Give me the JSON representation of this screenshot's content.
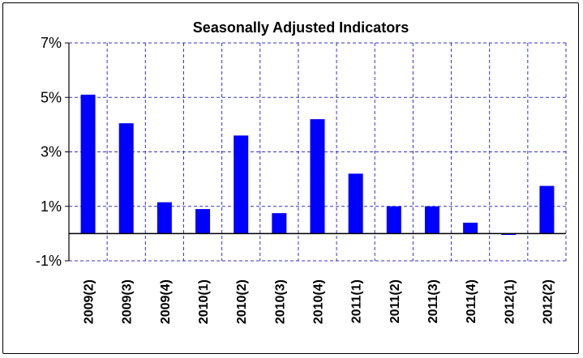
{
  "chart_data": {
    "type": "bar",
    "title": "Seasonally Adjusted Indicators",
    "xlabel": "",
    "ylabel": "",
    "categories": [
      "2009(2)",
      "2009(3)",
      "2009(4)",
      "2010(1)",
      "2010(2)",
      "2010(3)",
      "2010(4)",
      "2011(1)",
      "2011(2)",
      "2011(3)",
      "2011(4)",
      "2012(1)",
      "2012(2)"
    ],
    "values": [
      5.1,
      4.05,
      1.15,
      0.9,
      3.6,
      0.75,
      4.2,
      2.2,
      1.0,
      1.0,
      0.4,
      -0.05,
      1.75
    ],
    "ylim": [
      -1,
      7
    ],
    "yticks": [
      -1,
      1,
      3,
      5,
      7
    ],
    "ytick_labels": [
      "-1%",
      "1%",
      "3%",
      "5%",
      "7%"
    ],
    "grid": true,
    "bar_color": "#0000ff",
    "grid_color": "#3333cc"
  }
}
